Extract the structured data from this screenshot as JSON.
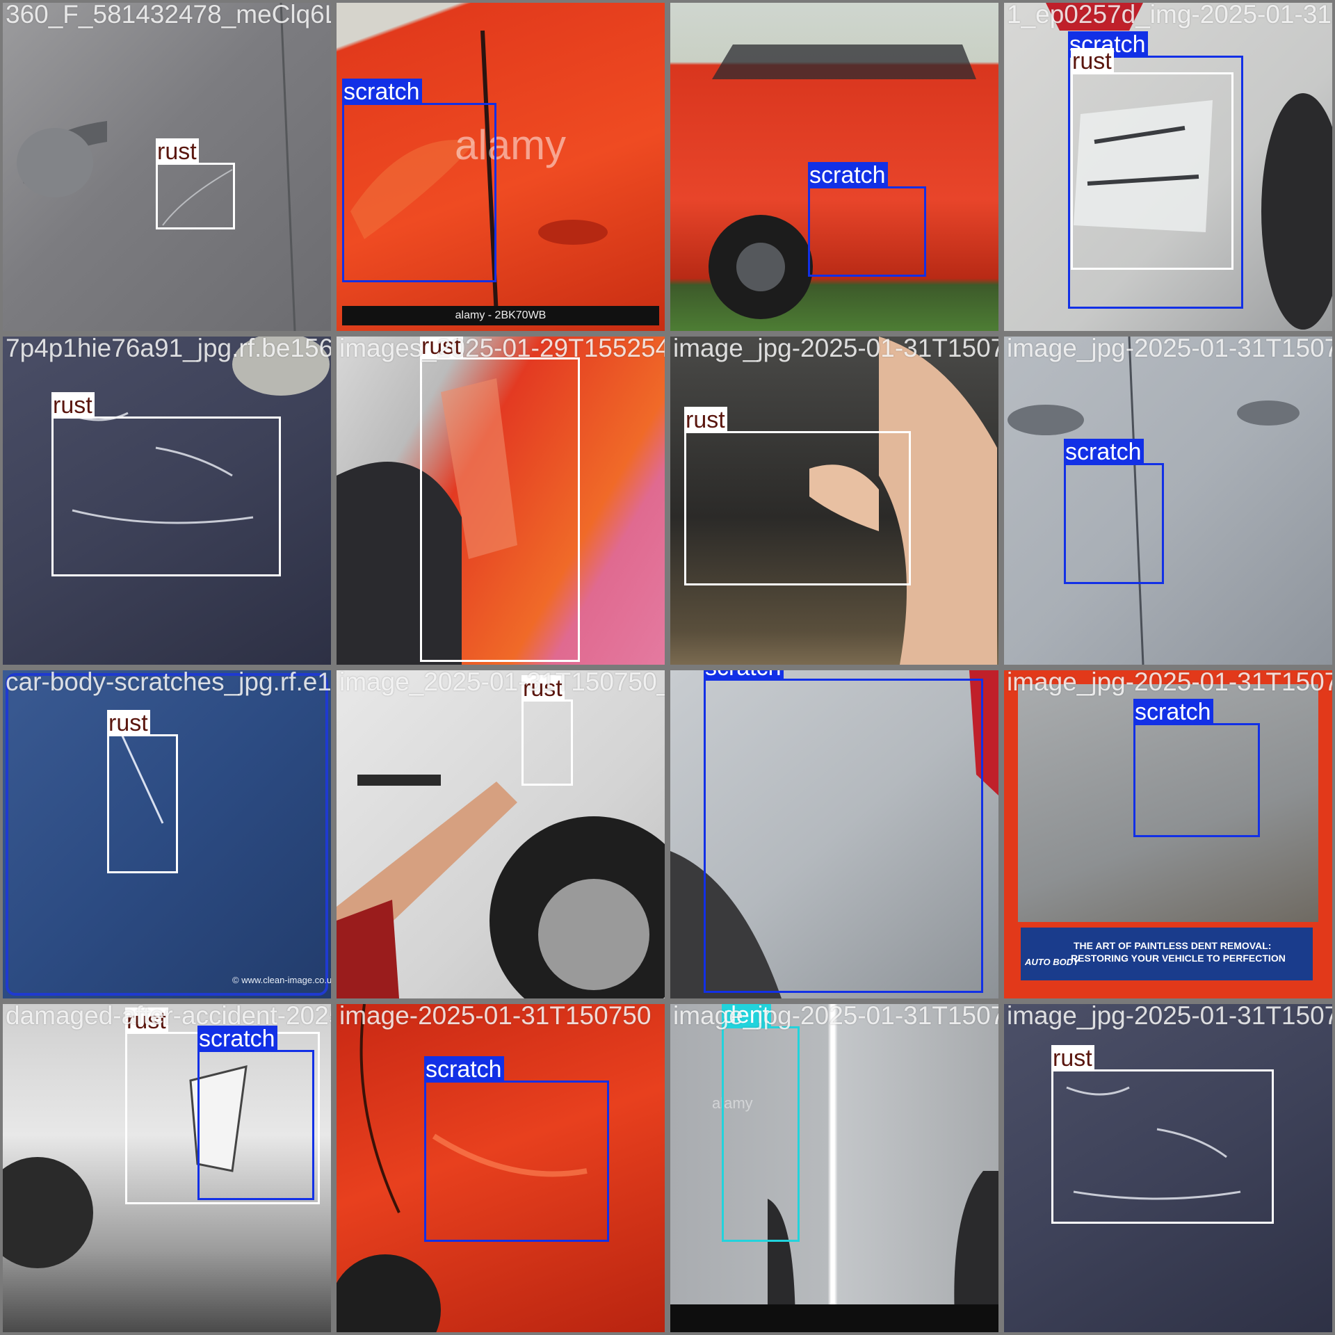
{
  "palette": {
    "scratch": "#1230e6",
    "rust": "#ffffff",
    "dent": "#22d3dc",
    "grid_bg": "#7a7a7a"
  },
  "tiles": [
    {
      "filename": "360_F_581432478_meClq6Lom1T4sCabndo1dgaoin-a-dwagedcen2025e01-31T150750.jpg",
      "boxes": [
        {
          "label": "rust",
          "class": "rust"
        }
      ]
    },
    {
      "filename": "",
      "boxes": [
        {
          "label": "scratch",
          "class": "scratch"
        }
      ],
      "watermark": "alamy",
      "footer": "alamy - 2BK70WB"
    },
    {
      "filename": "",
      "boxes": [
        {
          "label": "scratch",
          "class": "scratch"
        }
      ]
    },
    {
      "filename": "1_ep0257d_img-2025-01-31T150751",
      "boxes": [
        {
          "label": "scratch",
          "class": "scratch"
        },
        {
          "label": "rust",
          "class": "rust"
        }
      ]
    },
    {
      "filename": "7p4p1hie76a91_jpg.rf.be1569aa688",
      "boxes": [
        {
          "label": "rust",
          "class": "rust"
        }
      ]
    },
    {
      "filename": "images_2025-01-29T155254_i003",
      "boxes": [
        {
          "label": "rust",
          "class": "rust"
        }
      ]
    },
    {
      "filename": "image_jpg-2025-01-31T150750_i003",
      "boxes": [
        {
          "label": "rust",
          "class": "rust"
        }
      ]
    },
    {
      "filename": "image_jpg-2025-01-31T150752",
      "boxes": [
        {
          "label": "scratch",
          "class": "scratch"
        }
      ]
    },
    {
      "filename": "car-body-scratches_jpg.rf.e1ina",
      "boxes": [
        {
          "label": "rust",
          "class": "rust"
        }
      ],
      "credit": "© www.clean-image.co.uk"
    },
    {
      "filename": "image_2025-01-31T150750_i",
      "boxes": [
        {
          "label": "rust",
          "class": "rust"
        }
      ]
    },
    {
      "filename": "",
      "boxes": [
        {
          "label": "scratch",
          "class": "scratch"
        }
      ]
    },
    {
      "filename": "image_jpg-2025-01-31T150751_i010ejpg25-rfi764.rf.cf32d466",
      "boxes": [
        {
          "label": "scratch",
          "class": "scratch"
        }
      ],
      "banner": {
        "line1": "THE ART OF PAINTLESS DENT REMOVAL:",
        "line2": "RESTORING YOUR VEHICLE TO PERFECTION",
        "logo": "AUTO BODY"
      }
    },
    {
      "filename": "damaged-after-accident-2025-01-31T150750",
      "boxes": [
        {
          "label": "rust",
          "class": "rust"
        },
        {
          "label": "scratch",
          "class": "scratch"
        }
      ]
    },
    {
      "filename": "image-2025-01-31T150750",
      "boxes": [
        {
          "label": "scratch",
          "class": "scratch"
        }
      ]
    },
    {
      "filename": "image_jpg-2025-01-31T150751_i78",
      "boxes": [
        {
          "label": "dent",
          "class": "dent"
        }
      ],
      "watermark": "alamy"
    },
    {
      "filename": "image_jpg-2025-01-31T150751_i724.jpg.rf.d84f5bec",
      "boxes": [
        {
          "label": "rust",
          "class": "rust"
        }
      ]
    }
  ]
}
